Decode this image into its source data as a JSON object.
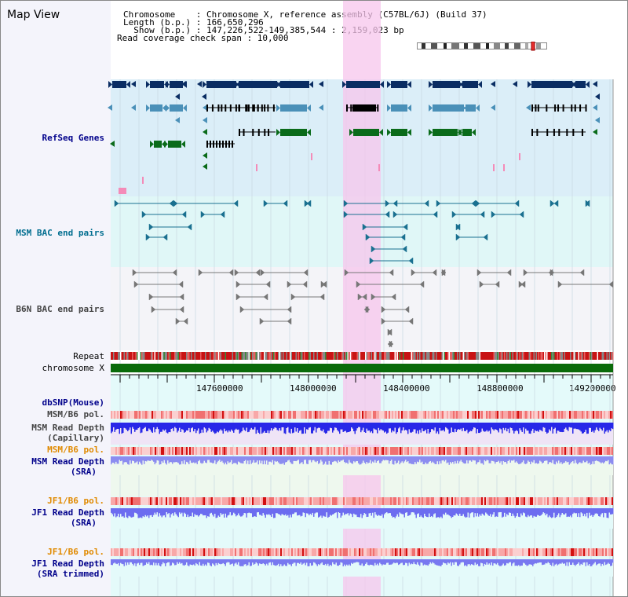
{
  "app_title": "Map View",
  "info": {
    "chromosome": "Chromosome    : Chromosome X, reference assembly (C57BL/6J) (Build 37)",
    "length": "Length (b.p.) : 166,650,296",
    "show": "  Show (b.p.) : 147,226,522-149,385,544 : 2,159,023 bp",
    "coverage": "Read coverage check span : 10,000"
  },
  "track_labels": {
    "refseq": "RefSeq Genes",
    "msm_bac": "MSM BAC end pairs",
    "b6n_bac": "B6N BAC end pairs",
    "repeat": "Repeat",
    "chromosome": "chromosome X",
    "dbsnp": "dbSNP(Mouse)",
    "msm_b6_pol_1": "MSM/B6 pol.",
    "msm_read_depth_cap_1": "MSM Read Depth",
    "msm_read_depth_cap_2": "(Capillary)",
    "msm_b6_pol_2": "MSM/B6 pol.",
    "msm_read_depth_sra_1": "MSM Read Depth",
    "msm_read_depth_sra_2": "(SRA)",
    "jf1_b6_pol_1": "JF1/B6 pol.",
    "jf1_read_depth_sra_1": "JF1 Read Depth",
    "jf1_read_depth_sra_2": "(SRA)",
    "jf1_b6_pol_2": "JF1/B6 pol.",
    "jf1_read_depth_trim_1": "JF1 Read Depth",
    "jf1_read_depth_trim_2": "(SRA trimmed)"
  },
  "axis_ticks": [
    "147600000",
    "148000000",
    "148400000",
    "148800000",
    "149200000"
  ],
  "colors": {
    "refseq_bg": "#dbeef8",
    "msm_bac_bg": "#e0f7f7",
    "b6n_bac_bg": "#f4f4f8",
    "highlight": "#f9c4ea",
    "gene_navy": "#0a2d63",
    "gene_steel": "#4a90b8",
    "gene_green": "#0a6b1a",
    "chrom_bar": "#0a6b0a",
    "depth_blue": "#3c3cf0",
    "depth_lavender": "#8c8cf0",
    "pol_red": "#f0a0a0"
  }
}
